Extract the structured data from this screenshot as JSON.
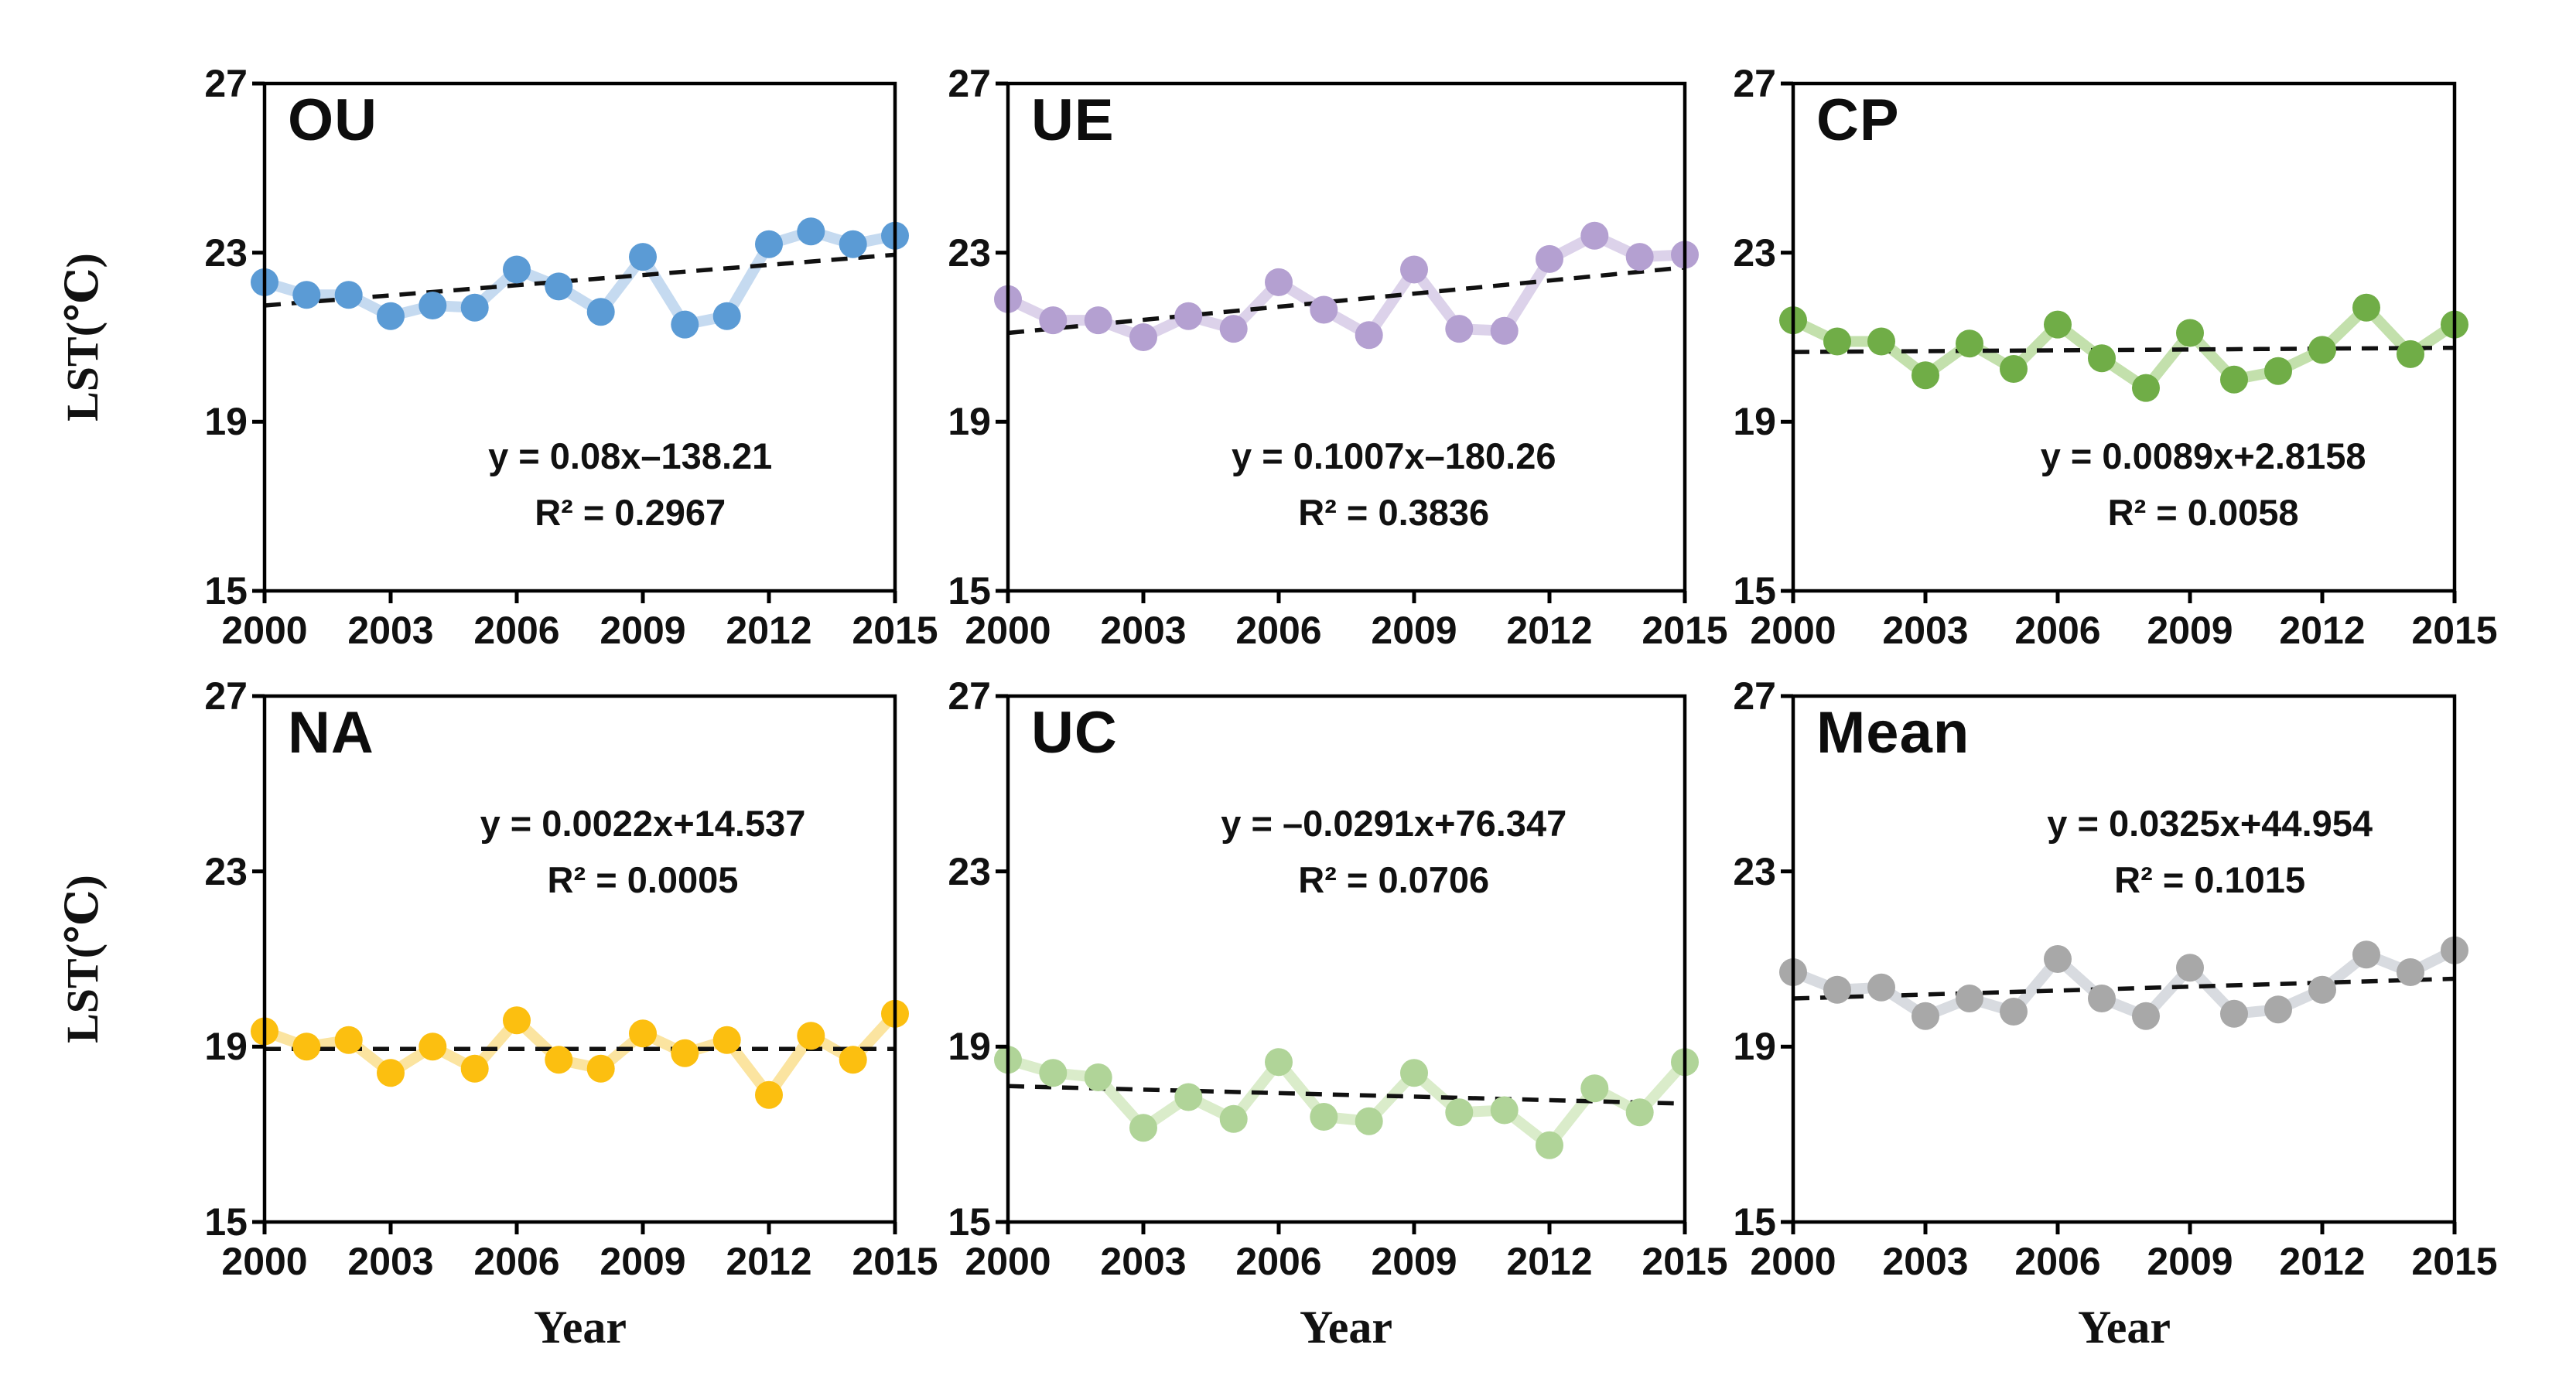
{
  "figure": {
    "ylabel": "LST(℃)",
    "xlabel": "Year",
    "ylim": [
      15,
      27
    ],
    "xlim": [
      2000,
      2015
    ],
    "y_ticks": [
      27,
      23,
      19,
      15
    ],
    "x_ticks": [
      2000,
      2003,
      2006,
      2009,
      2012,
      2015
    ],
    "grid": "off",
    "trendline_color": "#111111",
    "axis_color": "#000000"
  },
  "chart_data": [
    {
      "type": "line",
      "title": "OU",
      "x": [
        2000,
        2001,
        2002,
        2003,
        2004,
        2005,
        2006,
        2007,
        2008,
        2009,
        2010,
        2011,
        2012,
        2013,
        2014,
        2015
      ],
      "values": [
        22.3,
        22.0,
        22.0,
        21.5,
        21.75,
        21.7,
        22.6,
        22.2,
        21.6,
        22.9,
        21.3,
        21.5,
        23.2,
        23.5,
        23.2,
        23.4
      ],
      "equation": "y = 0.08x–138.21",
      "r2_label": "R² = 0.2967",
      "trend": {
        "start": 21.75,
        "end": 22.95
      },
      "color": "#5b9bd5",
      "line_color": "#c5daf0"
    },
    {
      "type": "line",
      "title": "UE",
      "x": [
        2000,
        2001,
        2002,
        2003,
        2004,
        2005,
        2006,
        2007,
        2008,
        2009,
        2010,
        2011,
        2012,
        2013,
        2014,
        2015
      ],
      "values": [
        21.9,
        21.4,
        21.4,
        21.0,
        21.5,
        21.2,
        22.3,
        21.65,
        21.05,
        22.6,
        21.2,
        21.15,
        22.85,
        23.4,
        22.9,
        22.95
      ],
      "equation": "y = 0.1007x–180.26",
      "r2_label": "R² = 0.3836",
      "trend": {
        "start": 21.1,
        "end": 22.65
      },
      "color": "#b4a0d1",
      "line_color": "#dcd2ea"
    },
    {
      "type": "line",
      "title": "CP",
      "x": [
        2000,
        2001,
        2002,
        2003,
        2004,
        2005,
        2006,
        2007,
        2008,
        2009,
        2010,
        2011,
        2012,
        2013,
        2014,
        2015
      ],
      "values": [
        21.4,
        20.9,
        20.9,
        20.1,
        20.85,
        20.25,
        21.3,
        20.5,
        19.8,
        21.1,
        20.0,
        20.2,
        20.7,
        21.7,
        20.6,
        21.3
      ],
      "equation": "y = 0.0089x+2.8158",
      "r2_label": "R² = 0.0058",
      "trend": {
        "start": 20.65,
        "end": 20.75
      },
      "color": "#70ad47",
      "line_color": "#c3e0ac"
    },
    {
      "type": "line",
      "title": "NA",
      "x": [
        2000,
        2001,
        2002,
        2003,
        2004,
        2005,
        2006,
        2007,
        2008,
        2009,
        2010,
        2011,
        2012,
        2013,
        2014,
        2015
      ],
      "values": [
        19.35,
        19.0,
        19.15,
        18.4,
        19.0,
        18.5,
        19.6,
        18.7,
        18.5,
        19.3,
        18.85,
        19.15,
        17.9,
        19.25,
        18.7,
        19.75
      ],
      "equation": "y = 0.0022x+14.537",
      "r2_label": "R² = 0.0005",
      "trend": {
        "start": 18.95,
        "end": 18.95
      },
      "color": "#fcbf10",
      "line_color": "#fbe4a0"
    },
    {
      "type": "line",
      "title": "UC",
      "x": [
        2000,
        2001,
        2002,
        2003,
        2004,
        2005,
        2006,
        2007,
        2008,
        2009,
        2010,
        2011,
        2012,
        2013,
        2014,
        2015
      ],
      "values": [
        18.7,
        18.4,
        18.3,
        17.15,
        17.85,
        17.35,
        18.65,
        17.4,
        17.3,
        18.4,
        17.5,
        17.55,
        16.75,
        18.05,
        17.5,
        18.65
      ],
      "equation": "y = –0.0291x+76.347",
      "r2_label": "R² = 0.0706",
      "trend": {
        "start": 18.1,
        "end": 17.7
      },
      "color": "#b0d498",
      "line_color": "#daecca"
    },
    {
      "type": "line",
      "title": "Mean",
      "x": [
        2000,
        2001,
        2002,
        2003,
        2004,
        2005,
        2006,
        2007,
        2008,
        2009,
        2010,
        2011,
        2012,
        2013,
        2014,
        2015
      ],
      "values": [
        20.7,
        20.3,
        20.35,
        19.7,
        20.1,
        19.8,
        21.0,
        20.1,
        19.7,
        20.8,
        19.75,
        19.85,
        20.3,
        21.1,
        20.7,
        21.2
      ],
      "equation": "y = 0.0325x+44.954",
      "r2_label": "R² = 0.1015",
      "trend": {
        "start": 20.1,
        "end": 20.55
      },
      "color": "#a8a8a8",
      "line_color": "#d8dbe0"
    }
  ]
}
